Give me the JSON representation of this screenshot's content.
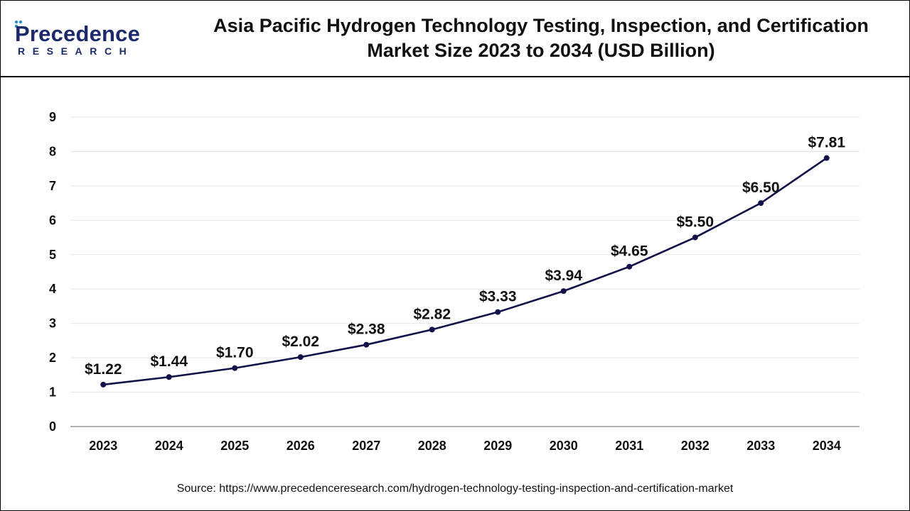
{
  "brand": {
    "word": "Precedence",
    "sub": "RESEARCH"
  },
  "chart_data": {
    "type": "line",
    "title": "Asia Pacific Hydrogen Technology Testing, Inspection, and Certification Market Size 2023 to 2034 (USD Billion)",
    "title_lines": [
      "Asia Pacific Hydrogen Technology Testing, Inspection, and Certification",
      "Market Size 2023 to 2034 (USD Billion)"
    ],
    "xlabel": "",
    "ylabel": "",
    "ylim": [
      0,
      9
    ],
    "yticks": [
      "0",
      "1",
      "2",
      "3",
      "4",
      "5",
      "6",
      "7",
      "8",
      "9"
    ],
    "grid": true,
    "categories": [
      "2023",
      "2024",
      "2025",
      "2026",
      "2027",
      "2028",
      "2029",
      "2030",
      "2031",
      "2032",
      "2033",
      "2034"
    ],
    "series": [
      {
        "values": [
          1.22,
          1.44,
          1.7,
          2.02,
          2.38,
          2.82,
          3.33,
          3.94,
          4.65,
          5.5,
          6.5,
          7.81
        ],
        "labels": [
          "$1.22",
          "$1.44",
          "$1.70",
          "$2.02",
          "$2.38",
          "$2.82",
          "$3.33",
          "$3.94",
          "$4.65",
          "$5.50",
          "$6.50",
          "$7.81"
        ],
        "color": "#12124a"
      }
    ]
  },
  "source": "Source: https://www.precedenceresearch.com/hydrogen-technology-testing-inspection-and-certification-market"
}
